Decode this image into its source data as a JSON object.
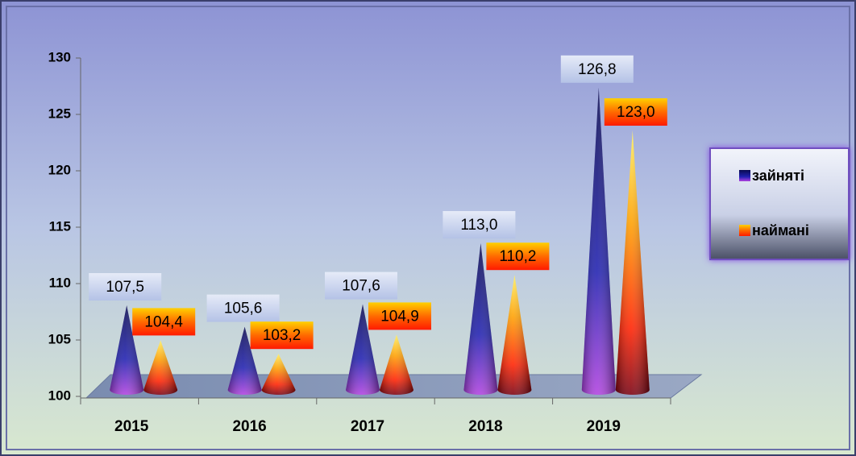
{
  "chart_data": {
    "type": "cone",
    "categories": [
      "2015",
      "2016",
      "2017",
      "2018",
      "2019"
    ],
    "series": [
      {
        "name": "зайняті",
        "color": "#1c1c9a",
        "values": [
          107.5,
          105.6,
          107.6,
          113.0,
          126.8
        ],
        "value_labels": [
          "107,5",
          "105,6",
          "107,6",
          "113,0",
          "126,8"
        ]
      },
      {
        "name": "наймані",
        "color": "#ff3300",
        "values": [
          104.4,
          103.2,
          104.9,
          110.2,
          123.0
        ],
        "value_labels": [
          "104,4",
          "103,2",
          "104,9",
          "110,2",
          "123,0"
        ]
      }
    ],
    "ylim": [
      100,
      130
    ],
    "yticks": [
      100,
      105,
      110,
      115,
      120,
      125,
      130
    ],
    "legend": "right"
  }
}
